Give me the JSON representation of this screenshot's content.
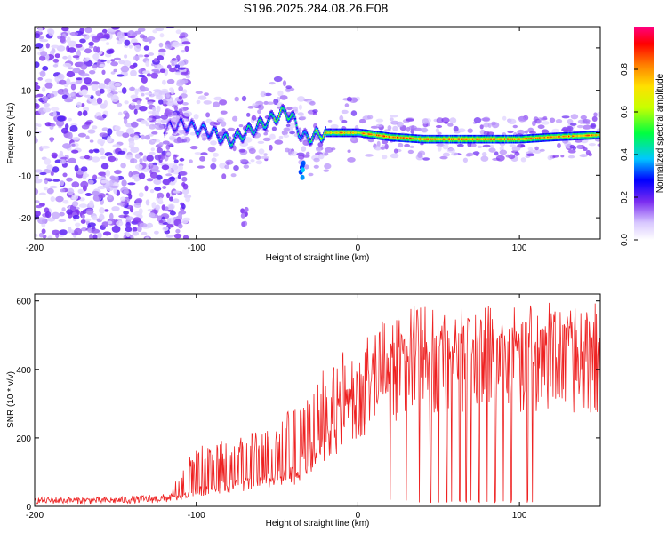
{
  "title": "S196.2025.284.08.26.E08",
  "chart_data": [
    {
      "type": "heatmap",
      "xlabel": "Height of straight line (km)",
      "ylabel": "Frequency (Hz)",
      "xlim": [
        -200,
        150
      ],
      "ylim": [
        -25,
        25
      ],
      "x_ticks": [
        -200,
        -100,
        0,
        100
      ],
      "x_tick_labels": [
        "-200",
        "-100",
        "0",
        "100"
      ],
      "y_ticks": [
        -20,
        -10,
        0,
        10,
        20
      ],
      "y_tick_labels": [
        "-20",
        "-10",
        "0",
        "10",
        "20"
      ],
      "colorbar": {
        "label": "Normalized spectral amplitude",
        "range": [
          0.0,
          1.0
        ],
        "ticks": [
          0.0,
          0.2,
          0.4,
          0.6,
          0.8
        ],
        "tick_labels": [
          "0.0",
          "0.2",
          "0.4",
          "0.6",
          "0.8"
        ]
      },
      "ridge": {
        "x": [
          -120,
          -110,
          -100,
          -90,
          -80,
          -70,
          -60,
          -50,
          -45,
          -40,
          -35,
          -30,
          -20,
          -10,
          0,
          10,
          20,
          40,
          60,
          80,
          100,
          120,
          150
        ],
        "freq": [
          1,
          2,
          1,
          0,
          -2,
          0,
          2,
          4,
          5,
          3,
          -1,
          -1,
          0,
          0,
          0,
          -0.5,
          -1,
          -1.5,
          -1.5,
          -1.5,
          -1.5,
          -1,
          -0.5
        ],
        "amplitude": [
          0.25,
          0.3,
          0.4,
          0.4,
          0.5,
          0.5,
          0.55,
          0.6,
          0.6,
          0.55,
          0.45,
          0.55,
          0.75,
          0.85,
          0.8,
          0.85,
          0.9,
          0.85,
          0.9,
          0.9,
          0.9,
          0.85,
          0.8
        ]
      },
      "noise_region_x": [
        -200,
        -115
      ],
      "secondary_features": [
        {
          "x": -35,
          "freq": -9,
          "amplitude": 0.35
        },
        {
          "x": -70,
          "freq": -20,
          "amplitude": 0.15
        }
      ]
    },
    {
      "type": "line",
      "xlabel": "Height of straight line (km)",
      "ylabel": "SNR (10 * v/v)",
      "xlim": [
        -200,
        150
      ],
      "ylim": [
        0,
        620
      ],
      "x_ticks": [
        -200,
        -100,
        0,
        100
      ],
      "x_tick_labels": [
        "-200",
        "-100",
        "0",
        "100"
      ],
      "y_ticks": [
        0,
        200,
        400,
        600
      ],
      "y_tick_labels": [
        "0",
        "200",
        "400",
        "600"
      ],
      "series": [
        {
          "name": "SNR",
          "color": "#ee2222",
          "x": [
            -200,
            -150,
            -120,
            -110,
            -100,
            -90,
            -80,
            -70,
            -60,
            -50,
            -40,
            -30,
            -20,
            -10,
            0,
            10,
            20,
            30,
            40,
            50,
            60,
            70,
            80,
            90,
            100,
            110,
            120,
            130,
            140,
            150
          ],
          "y_base": [
            15,
            15,
            20,
            30,
            45,
            60,
            65,
            70,
            75,
            85,
            100,
            150,
            200,
            270,
            330,
            370,
            400,
            420,
            440,
            450,
            460,
            460,
            460,
            450,
            450,
            450,
            450,
            450,
            450,
            450
          ],
          "y_max": [
            35,
            35,
            40,
            100,
            180,
            190,
            200,
            210,
            220,
            230,
            300,
            340,
            420,
            450,
            470,
            520,
            560,
            580,
            600,
            610,
            605,
            600,
            600,
            600,
            600,
            600,
            600,
            600,
            600,
            600
          ],
          "dropouts_x": [
            20,
            30,
            38,
            45,
            50,
            55,
            58,
            63,
            67,
            70,
            75,
            80,
            85,
            90,
            95,
            105,
            108
          ]
        }
      ]
    }
  ]
}
